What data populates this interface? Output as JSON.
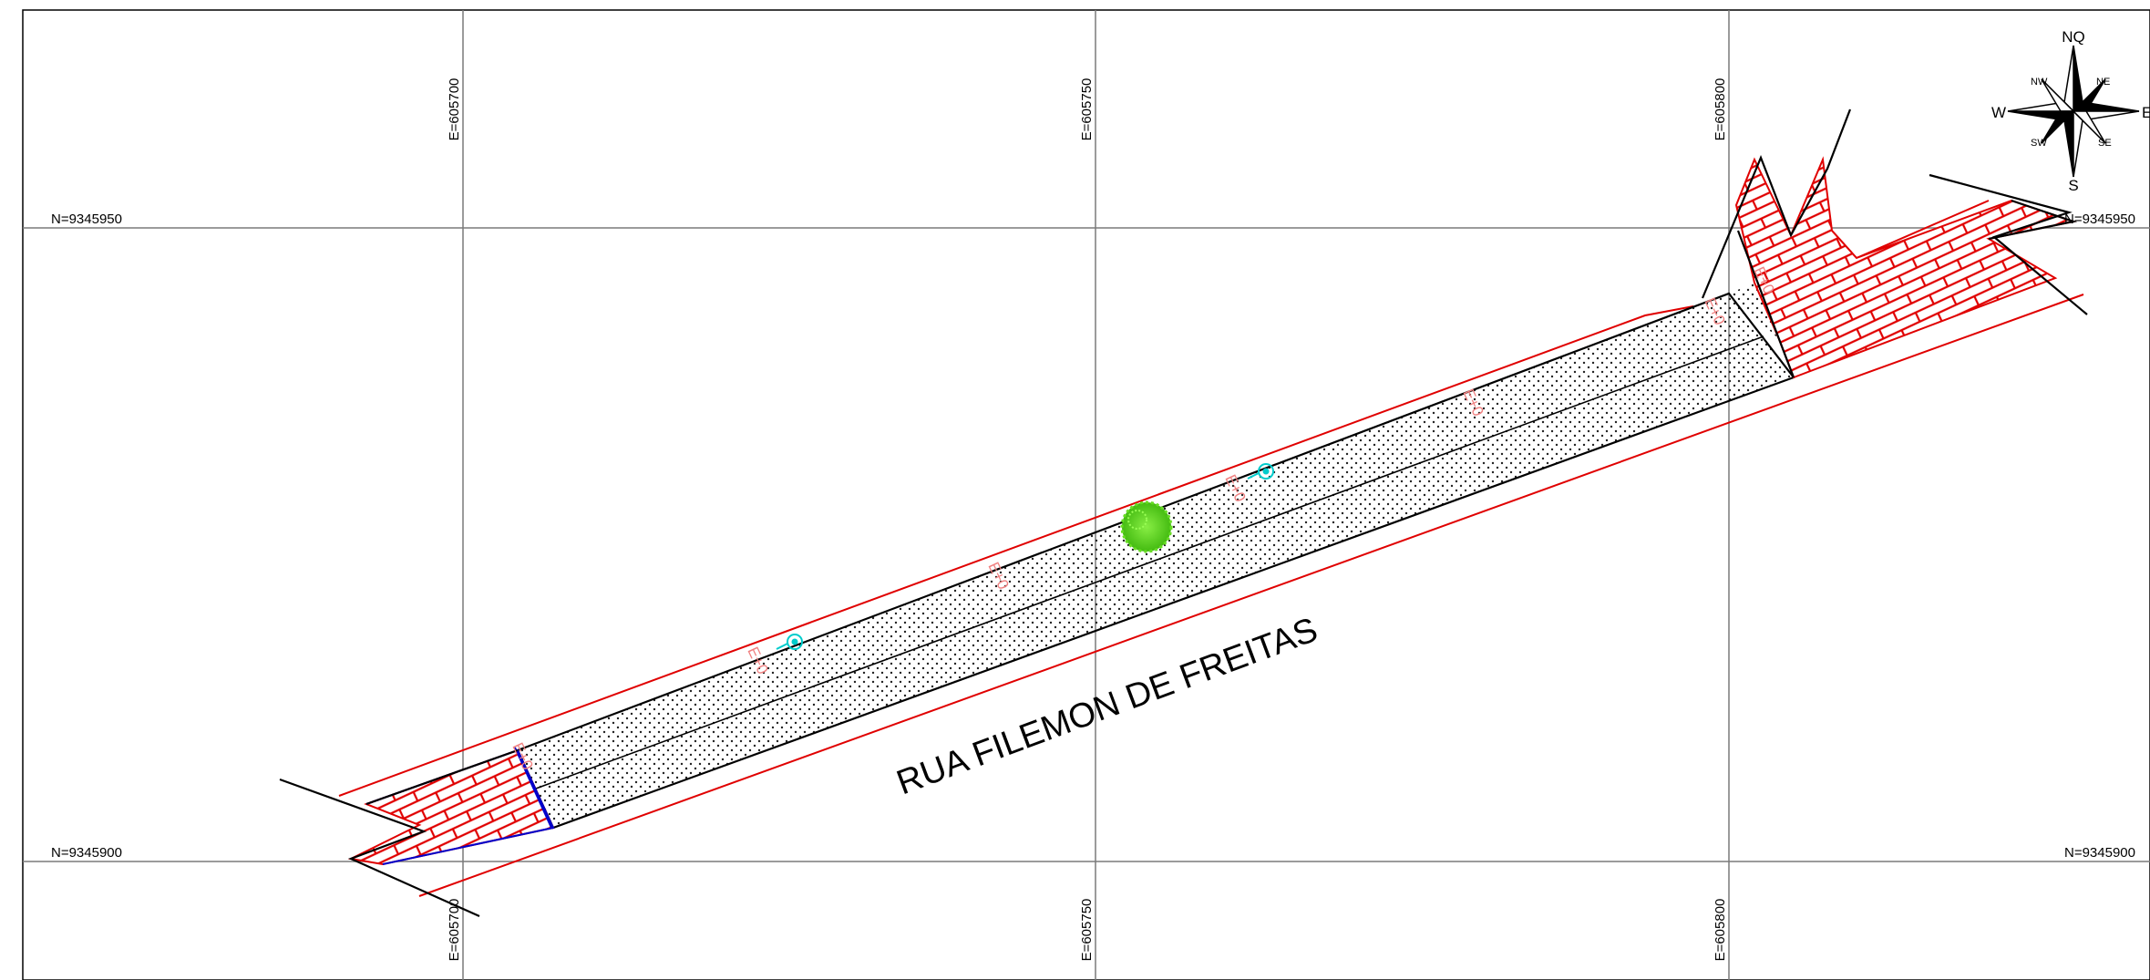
{
  "map": {
    "street_name": "RUA FILEMON DE FREITAS",
    "grid": {
      "easting_labels": [
        "E=605700",
        "E=605750",
        "E=605800"
      ],
      "northing_labels": [
        "N=9345950",
        "N=9345900"
      ]
    },
    "station_labels": [
      "E+0",
      "E+0",
      "E+0",
      "E+0",
      "E+0",
      "E+0",
      "E+0"
    ],
    "compass": {
      "north": "NQ",
      "south": "S",
      "east": "E",
      "west": "W",
      "northeast": "NE",
      "northwest": "NW",
      "southeast": "SE",
      "southwest": "SW"
    },
    "colors": {
      "grid": "#7a7a7a",
      "border": "#000000",
      "road_edge": "#000000",
      "right_of_way": "#e00000",
      "paving": "#e00000",
      "station_label": "#f08080",
      "lot_outline": "#0000cc",
      "lamp_post": "#00cccc",
      "tree": "#66dd22"
    },
    "icons": {
      "tree": "tree-icon",
      "lamp_post": "lamp-post-icon",
      "compass": "compass-rose-icon"
    }
  }
}
